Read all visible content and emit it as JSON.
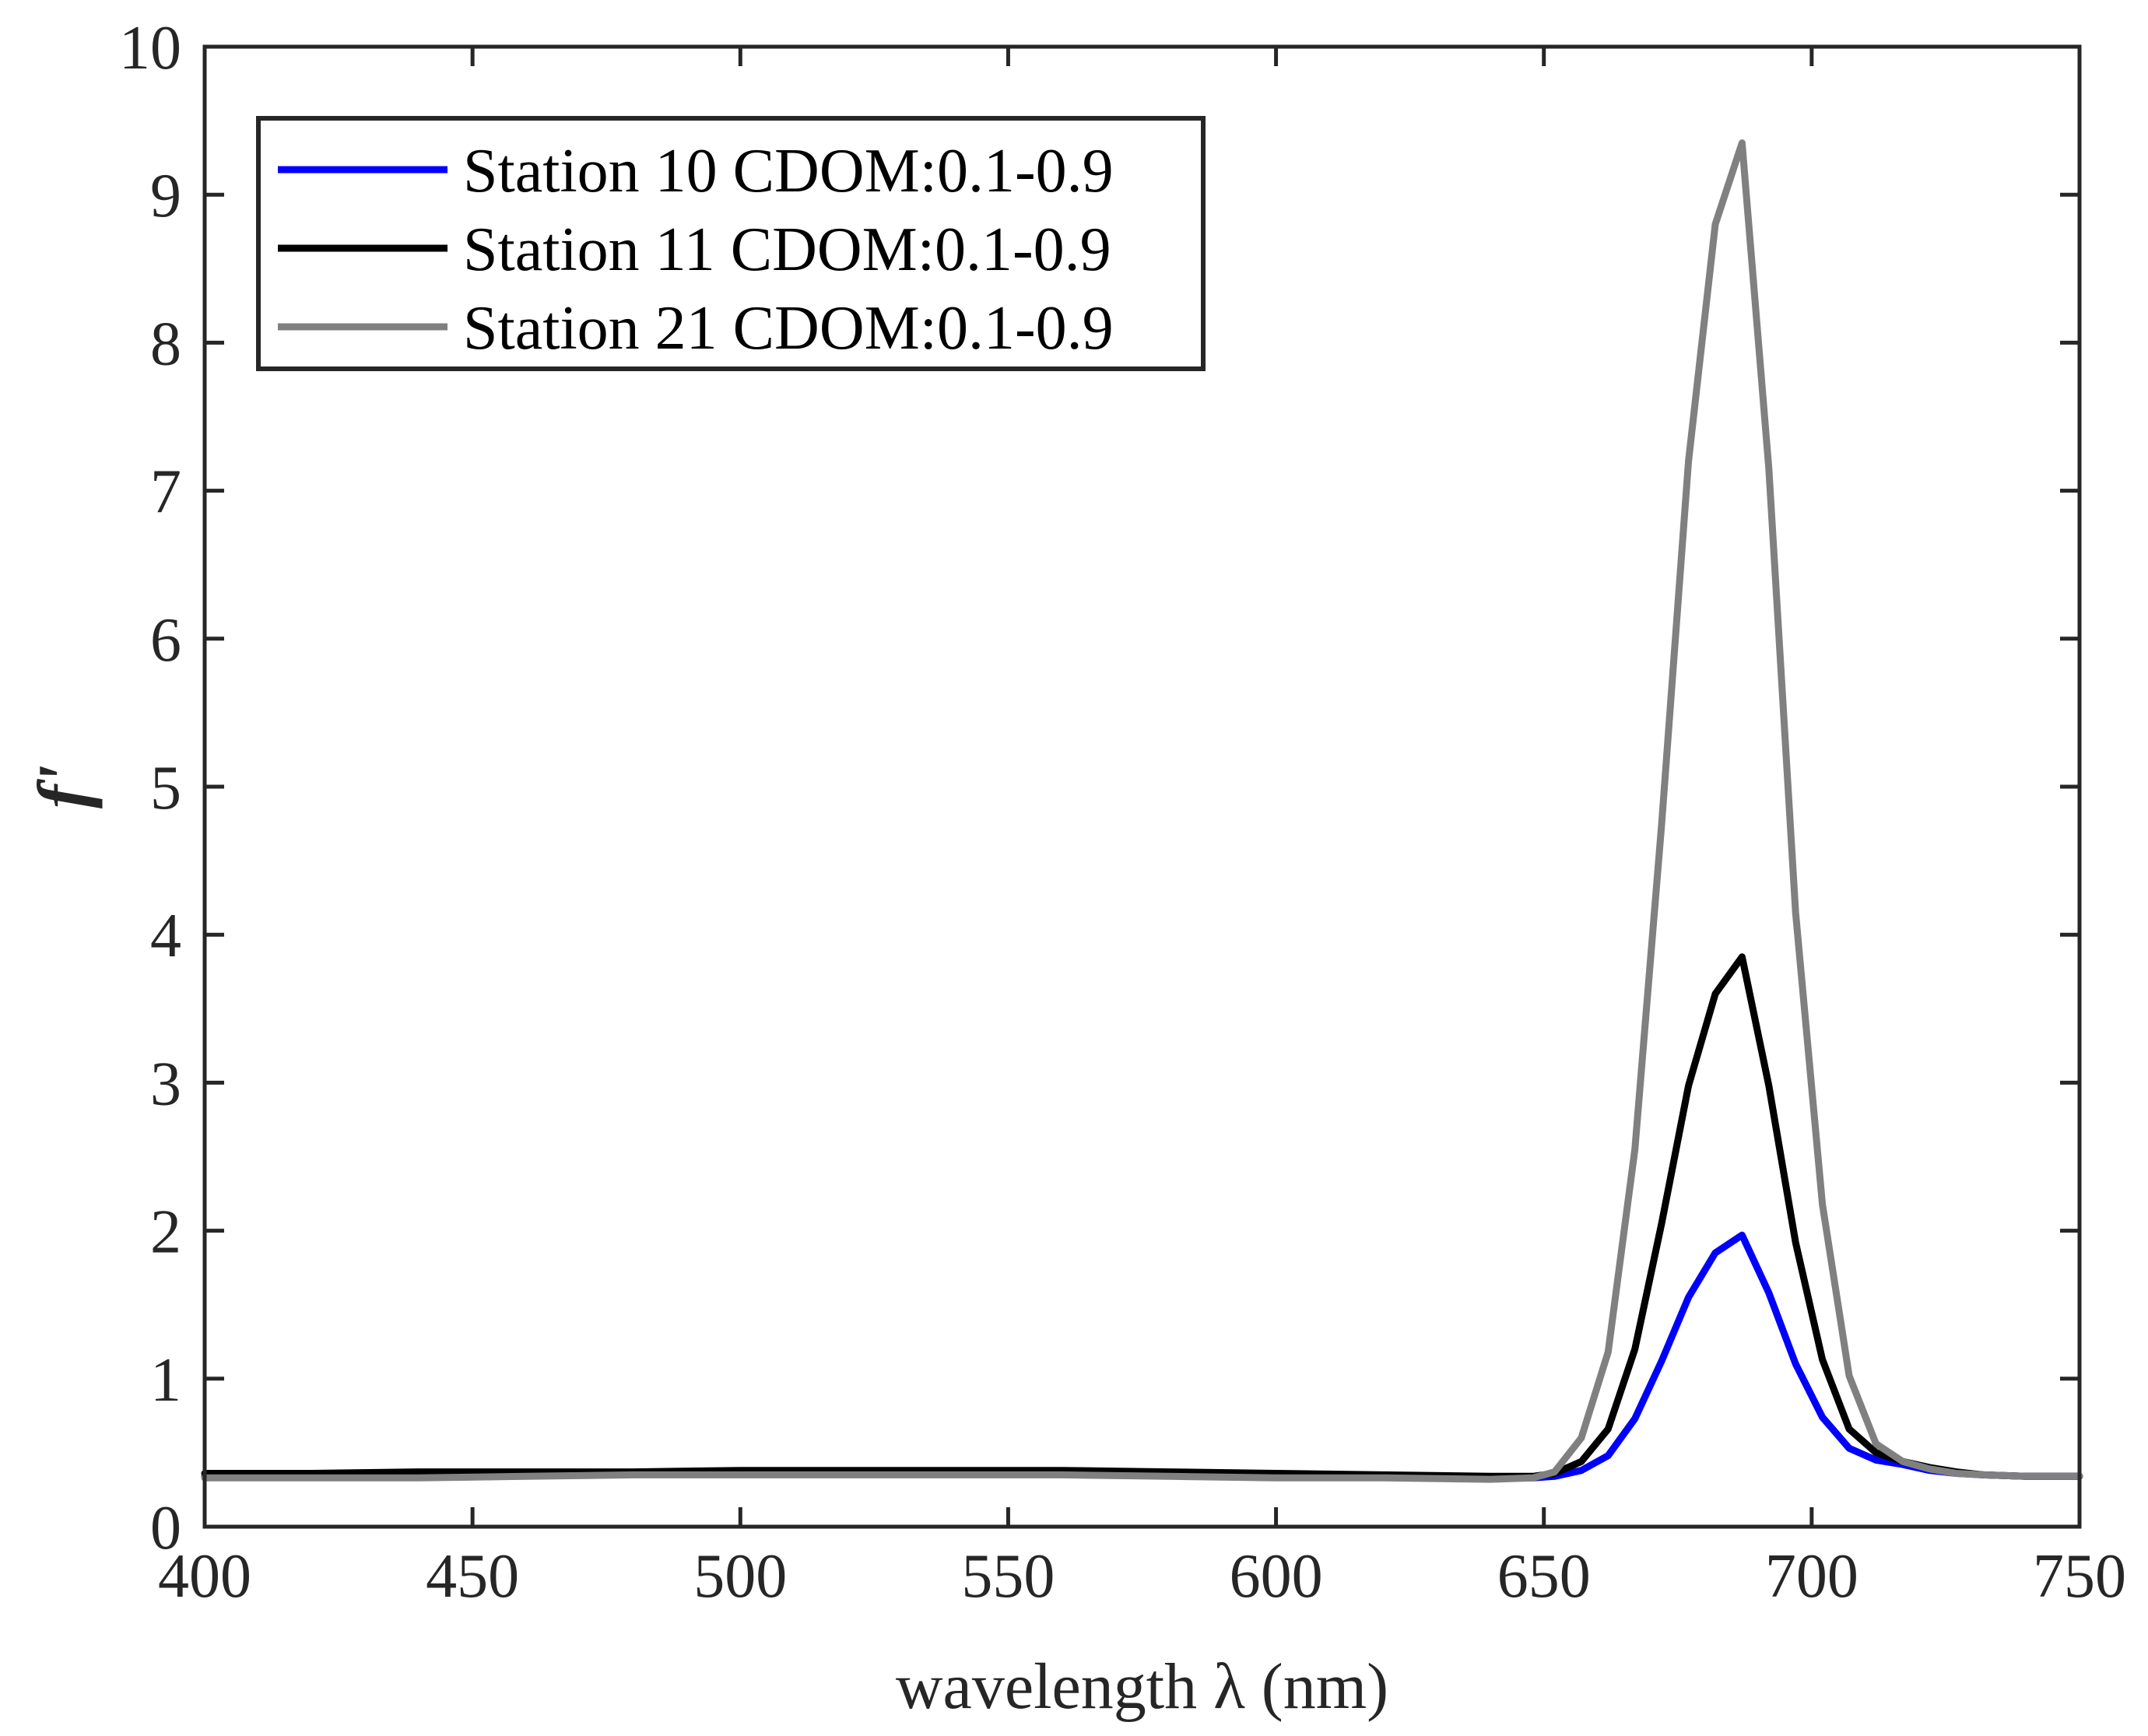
{
  "chart_data": {
    "type": "line",
    "title": "",
    "xlabel": "wavelength λ (nm)",
    "ylabel": "f'",
    "xlim": [
      400,
      750
    ],
    "ylim": [
      0,
      10
    ],
    "xticks": [
      "400",
      "450",
      "500",
      "550",
      "600",
      "650",
      "700",
      "750"
    ],
    "yticks": [
      "0",
      "1",
      "2",
      "3",
      "4",
      "5",
      "6",
      "7",
      "8",
      "9",
      "10"
    ],
    "grid": false,
    "legend_position": "top-left",
    "x": [
      400,
      420,
      440,
      460,
      480,
      500,
      520,
      540,
      560,
      580,
      600,
      620,
      640,
      648,
      652,
      657,
      662,
      667,
      672,
      677,
      682,
      687,
      692,
      697,
      702,
      707,
      712,
      717,
      722,
      727,
      732,
      740,
      750
    ],
    "series": [
      {
        "name": "Station 10 CDOM:0.1-0.9",
        "color": "#0000ff",
        "values": [
          0.34,
          0.34,
          0.35,
          0.35,
          0.36,
          0.36,
          0.36,
          0.36,
          0.36,
          0.36,
          0.35,
          0.34,
          0.33,
          0.33,
          0.34,
          0.38,
          0.48,
          0.73,
          1.12,
          1.55,
          1.85,
          1.97,
          1.58,
          1.1,
          0.74,
          0.53,
          0.45,
          0.42,
          0.38,
          0.36,
          0.35,
          0.34,
          0.34
        ]
      },
      {
        "name": "Station 11 CDOM:0.1-0.9",
        "color": "#000000",
        "values": [
          0.36,
          0.36,
          0.37,
          0.37,
          0.37,
          0.38,
          0.38,
          0.38,
          0.38,
          0.37,
          0.36,
          0.35,
          0.34,
          0.34,
          0.36,
          0.44,
          0.66,
          1.2,
          2.05,
          2.98,
          3.6,
          3.85,
          2.98,
          1.92,
          1.13,
          0.66,
          0.5,
          0.44,
          0.4,
          0.37,
          0.35,
          0.34,
          0.34
        ]
      },
      {
        "name": "Station 21 CDOM:0.1-0.9",
        "color": "#808080",
        "values": [
          0.33,
          0.33,
          0.33,
          0.34,
          0.35,
          0.35,
          0.35,
          0.35,
          0.35,
          0.34,
          0.33,
          0.33,
          0.32,
          0.33,
          0.37,
          0.6,
          1.18,
          2.55,
          4.75,
          7.2,
          8.8,
          9.35,
          7.15,
          4.15,
          2.18,
          1.02,
          0.56,
          0.44,
          0.39,
          0.36,
          0.35,
          0.34,
          0.34
        ]
      }
    ]
  }
}
